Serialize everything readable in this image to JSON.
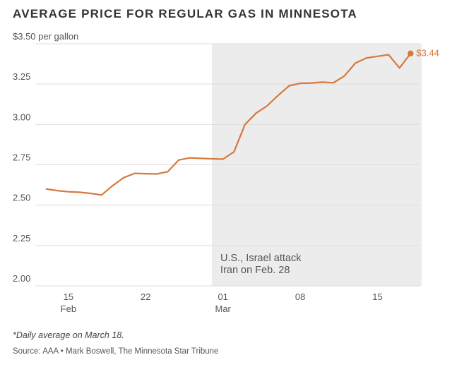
{
  "title": "AVERAGE PRICE FOR REGULAR GAS IN MINNESOTA",
  "footnote": "*Daily average on March 18.",
  "source": "Source: AAA • Mark Boswell, The Minnesota Star Tribune",
  "colors": {
    "line": "#d6793e",
    "shade": "#ececec",
    "grid": "#dddddd"
  },
  "chart_data": {
    "type": "line",
    "title": "AVERAGE PRICE FOR REGULAR GAS IN MINNESOTA",
    "ylabel": "$3.50 per gallon",
    "ylim": [
      2.0,
      3.5
    ],
    "yticks": [
      {
        "value": 3.5,
        "label": "$3.50 per gallon"
      },
      {
        "value": 3.25,
        "label": "3.25"
      },
      {
        "value": 3.0,
        "label": "3.00"
      },
      {
        "value": 2.75,
        "label": "2.75"
      },
      {
        "value": 2.5,
        "label": "2.50"
      },
      {
        "value": 2.25,
        "label": "2.25"
      },
      {
        "value": 2.0,
        "label": "2.00"
      }
    ],
    "xlim": [
      "2026-02-12",
      "2026-03-19"
    ],
    "xticks": [
      {
        "date": "2026-02-15",
        "label": "15",
        "sublabel": "Feb"
      },
      {
        "date": "2026-02-22",
        "label": "22",
        "sublabel": ""
      },
      {
        "date": "2026-03-01",
        "label": "01",
        "sublabel": "Mar"
      },
      {
        "date": "2026-03-08",
        "label": "08",
        "sublabel": ""
      },
      {
        "date": "2026-03-15",
        "label": "15",
        "sublabel": ""
      }
    ],
    "shaded_region": {
      "start": "2026-02-28",
      "end": "2026-03-19",
      "annotation": [
        "U.S., Israel attack",
        "Iran on Feb. 28"
      ]
    },
    "series": [
      {
        "name": "Regular gas",
        "points": [
          {
            "date": "2026-02-13",
            "value": 2.6
          },
          {
            "date": "2026-02-14",
            "value": 2.59
          },
          {
            "date": "2026-02-15",
            "value": 2.583
          },
          {
            "date": "2026-02-16",
            "value": 2.58
          },
          {
            "date": "2026-02-17",
            "value": 2.573
          },
          {
            "date": "2026-02-18",
            "value": 2.563
          },
          {
            "date": "2026-02-19",
            "value": 2.62
          },
          {
            "date": "2026-02-20",
            "value": 2.67
          },
          {
            "date": "2026-02-21",
            "value": 2.697
          },
          {
            "date": "2026-02-22",
            "value": 2.695
          },
          {
            "date": "2026-02-23",
            "value": 2.693
          },
          {
            "date": "2026-02-24",
            "value": 2.707
          },
          {
            "date": "2026-02-25",
            "value": 2.78
          },
          {
            "date": "2026-02-26",
            "value": 2.793
          },
          {
            "date": "2026-02-27",
            "value": 2.79
          },
          {
            "date": "2026-02-28",
            "value": 2.787
          },
          {
            "date": "2026-03-01",
            "value": 2.785
          },
          {
            "date": "2026-03-02",
            "value": 2.83
          },
          {
            "date": "2026-03-03",
            "value": 3.0
          },
          {
            "date": "2026-03-04",
            "value": 3.07
          },
          {
            "date": "2026-03-05",
            "value": 3.115
          },
          {
            "date": "2026-03-06",
            "value": 3.18
          },
          {
            "date": "2026-03-07",
            "value": 3.24
          },
          {
            "date": "2026-03-08",
            "value": 3.255
          },
          {
            "date": "2026-03-09",
            "value": 3.257
          },
          {
            "date": "2026-03-10",
            "value": 3.262
          },
          {
            "date": "2026-03-11",
            "value": 3.258
          },
          {
            "date": "2026-03-12",
            "value": 3.3
          },
          {
            "date": "2026-03-13",
            "value": 3.38
          },
          {
            "date": "2026-03-14",
            "value": 3.412
          },
          {
            "date": "2026-03-15",
            "value": 3.422
          },
          {
            "date": "2026-03-16",
            "value": 3.432
          },
          {
            "date": "2026-03-17",
            "value": 3.35
          },
          {
            "date": "2026-03-18",
            "value": 3.44
          }
        ]
      }
    ],
    "end_label": "$3.44"
  }
}
